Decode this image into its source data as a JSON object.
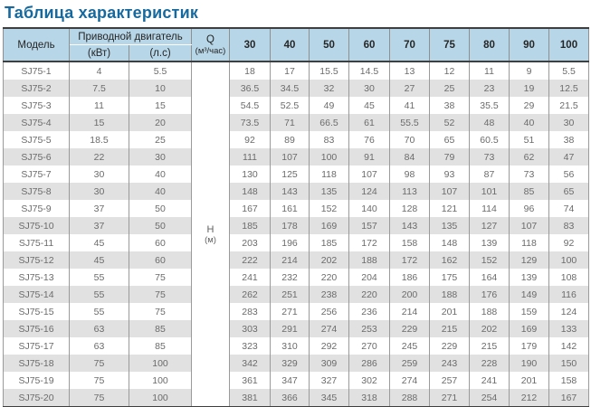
{
  "page_title": "Таблица характеристик",
  "colors": {
    "title_text": "#16699e",
    "header_bg": "#b7d6e7",
    "row_stripe": "#e1e1e1",
    "data_text": "#6b6b6b",
    "border_dark": "#3f3f3f"
  },
  "table": {
    "headers": {
      "model": "Модель",
      "motor_group": "Приводной двигатель",
      "motor_kw": "(кВт)",
      "motor_hp": "(л.с)",
      "q_label": "Q",
      "q_unit": "(м³/час)",
      "h_label": "H",
      "h_unit": "(м)",
      "flow_columns": [
        "30",
        "40",
        "50",
        "60",
        "70",
        "75",
        "80",
        "90",
        "100"
      ]
    },
    "rows": [
      {
        "model": "SJ75-1",
        "kw": "4",
        "hp": "5.5",
        "values": [
          "18",
          "17",
          "15.5",
          "14.5",
          "13",
          "12",
          "11",
          "9",
          "5.5"
        ]
      },
      {
        "model": "SJ75-2",
        "kw": "7.5",
        "hp": "10",
        "values": [
          "36.5",
          "34.5",
          "32",
          "30",
          "27",
          "25",
          "23",
          "19",
          "12.5"
        ]
      },
      {
        "model": "SJ75-3",
        "kw": "11",
        "hp": "15",
        "values": [
          "54.5",
          "52.5",
          "49",
          "45",
          "41",
          "38",
          "35.5",
          "29",
          "21.5"
        ]
      },
      {
        "model": "SJ75-4",
        "kw": "15",
        "hp": "20",
        "values": [
          "73.5",
          "71",
          "66.5",
          "61",
          "55.5",
          "52",
          "48",
          "40",
          "30"
        ]
      },
      {
        "model": "SJ75-5",
        "kw": "18.5",
        "hp": "25",
        "values": [
          "92",
          "89",
          "83",
          "76",
          "70",
          "65",
          "60.5",
          "51",
          "38"
        ]
      },
      {
        "model": "SJ75-6",
        "kw": "22",
        "hp": "30",
        "values": [
          "111",
          "107",
          "100",
          "91",
          "84",
          "79",
          "73",
          "62",
          "47"
        ]
      },
      {
        "model": "SJ75-7",
        "kw": "30",
        "hp": "40",
        "values": [
          "130",
          "125",
          "118",
          "107",
          "98",
          "93",
          "87",
          "73",
          "56"
        ]
      },
      {
        "model": "SJ75-8",
        "kw": "30",
        "hp": "40",
        "values": [
          "148",
          "143",
          "135",
          "124",
          "113",
          "107",
          "101",
          "85",
          "65"
        ]
      },
      {
        "model": "SJ75-9",
        "kw": "37",
        "hp": "50",
        "values": [
          "167",
          "161",
          "152",
          "140",
          "128",
          "121",
          "114",
          "96",
          "74"
        ]
      },
      {
        "model": "SJ75-10",
        "kw": "37",
        "hp": "50",
        "values": [
          "185",
          "178",
          "169",
          "157",
          "143",
          "135",
          "127",
          "107",
          "83"
        ]
      },
      {
        "model": "SJ75-11",
        "kw": "45",
        "hp": "60",
        "values": [
          "203",
          "196",
          "185",
          "172",
          "158",
          "148",
          "139",
          "118",
          "92"
        ]
      },
      {
        "model": "SJ75-12",
        "kw": "45",
        "hp": "60",
        "values": [
          "222",
          "214",
          "202",
          "188",
          "172",
          "162",
          "152",
          "129",
          "100"
        ]
      },
      {
        "model": "SJ75-13",
        "kw": "55",
        "hp": "75",
        "values": [
          "241",
          "232",
          "220",
          "204",
          "186",
          "175",
          "164",
          "139",
          "108"
        ]
      },
      {
        "model": "SJ75-14",
        "kw": "55",
        "hp": "75",
        "values": [
          "262",
          "251",
          "238",
          "220",
          "200",
          "188",
          "176",
          "149",
          "116"
        ]
      },
      {
        "model": "SJ75-15",
        "kw": "55",
        "hp": "75",
        "values": [
          "283",
          "271",
          "256",
          "236",
          "214",
          "201",
          "188",
          "159",
          "124"
        ]
      },
      {
        "model": "SJ75-16",
        "kw": "63",
        "hp": "85",
        "values": [
          "303",
          "291",
          "274",
          "253",
          "229",
          "215",
          "202",
          "169",
          "133"
        ]
      },
      {
        "model": "SJ75-17",
        "kw": "63",
        "hp": "85",
        "values": [
          "323",
          "310",
          "292",
          "270",
          "245",
          "229",
          "215",
          "179",
          "142"
        ]
      },
      {
        "model": "SJ75-18",
        "kw": "75",
        "hp": "100",
        "values": [
          "342",
          "329",
          "309",
          "286",
          "259",
          "243",
          "228",
          "190",
          "150"
        ]
      },
      {
        "model": "SJ75-19",
        "kw": "75",
        "hp": "100",
        "values": [
          "361",
          "347",
          "327",
          "302",
          "274",
          "257",
          "241",
          "201",
          "158"
        ]
      },
      {
        "model": "SJ75-20",
        "kw": "75",
        "hp": "100",
        "values": [
          "381",
          "366",
          "345",
          "318",
          "288",
          "271",
          "254",
          "212",
          "167"
        ]
      }
    ]
  }
}
